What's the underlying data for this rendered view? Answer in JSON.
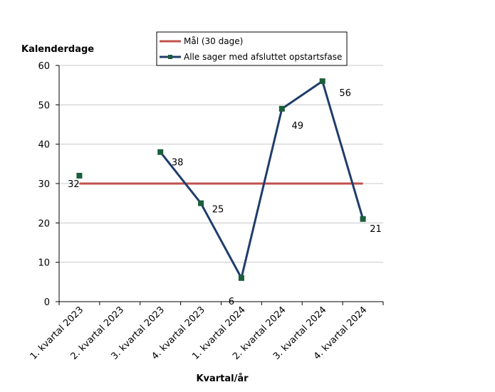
{
  "chart_data": {
    "type": "line",
    "ylabel": "Kalenderdage",
    "xlabel": "Kvartal/år",
    "categories": [
      "1. kvartal 2023",
      "2. kvartal 2023",
      "3. kvartal 2023",
      "4. kvartal 2023",
      "1. kvartal 2024",
      "2. kvartal 2024",
      "3. kvartal 2024",
      "4. kvartal 2024"
    ],
    "ylim": [
      0,
      60
    ],
    "yticks": [
      "0",
      "10",
      "20",
      "30",
      "40",
      "50",
      "60"
    ],
    "grid": true,
    "legend_position": "top-right",
    "series": [
      {
        "name": "Mål (30 dage)",
        "color": "#c0504d",
        "marker": "none",
        "values": [
          30,
          30,
          30,
          30,
          30,
          30,
          30,
          30
        ]
      },
      {
        "name": "Alle sager med afsluttet opstartsfase",
        "color": "#1f3d6b",
        "marker_color": "#1b5e3b",
        "marker": "square",
        "values": [
          32,
          null,
          38,
          25,
          6,
          49,
          56,
          21
        ],
        "labels": [
          "32",
          "",
          "38",
          "25",
          "6",
          "49",
          "56",
          "21"
        ]
      }
    ]
  }
}
